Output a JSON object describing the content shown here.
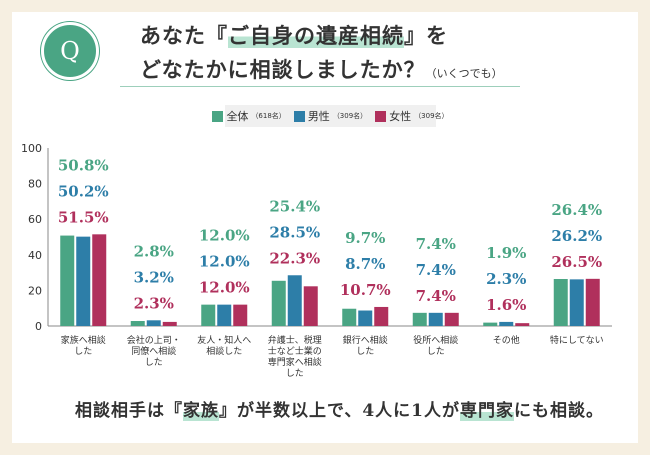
{
  "question": {
    "icon_letter": "Q",
    "line1": {
      "before": "あなた『",
      "highlight": "ご自身の遺産相続",
      "after": "』を"
    },
    "line2": {
      "main": "どなたかに相談しましたか？",
      "note": "（いくつでも）"
    }
  },
  "legend": [
    {
      "label": "全体",
      "sub": "（618名）",
      "color": "#4aa584"
    },
    {
      "label": "男性",
      "sub": "（309名）",
      "color": "#2d7ea8"
    },
    {
      "label": "女性",
      "sub": "（309名）",
      "color": "#b0305c"
    }
  ],
  "chart_data": {
    "type": "bar",
    "categories": [
      [
        "家族へ相談",
        "した"
      ],
      [
        "会社の上司・",
        "同僚へ相談",
        "した"
      ],
      [
        "友人・知人へ",
        "相談した"
      ],
      [
        "弁護士、税理",
        "士など士業の",
        "専門家へ相談",
        "した"
      ],
      [
        "銀行へ相談",
        "した"
      ],
      [
        "役所へ相談",
        "した"
      ],
      [
        "その他"
      ],
      [
        "特にしてない"
      ]
    ],
    "series": [
      {
        "name": "全体",
        "color": "#4aa584",
        "values": [
          50.8,
          2.8,
          12.0,
          25.4,
          9.7,
          7.4,
          1.9,
          26.4
        ]
      },
      {
        "name": "男性",
        "color": "#2d7ea8",
        "values": [
          50.2,
          3.2,
          12.0,
          28.5,
          8.7,
          7.4,
          2.3,
          26.2
        ]
      },
      {
        "name": "女性",
        "color": "#b0305c",
        "values": [
          51.5,
          2.3,
          12.0,
          22.3,
          10.7,
          7.4,
          1.6,
          26.5
        ]
      }
    ],
    "y_ticks": [
      "0",
      "20",
      "40",
      "60",
      "80",
      "100"
    ],
    "ylim": [
      0,
      100
    ],
    "value_suffix": "%"
  },
  "footer": {
    "parts": [
      {
        "text": "相談相手は『",
        "hl": false
      },
      {
        "text": "家族",
        "hl": true
      },
      {
        "text": "』が半数以上で、4人に1人が",
        "hl": false
      },
      {
        "text": "専門家",
        "hl": true
      },
      {
        "text": "にも相談。",
        "hl": false
      }
    ]
  }
}
